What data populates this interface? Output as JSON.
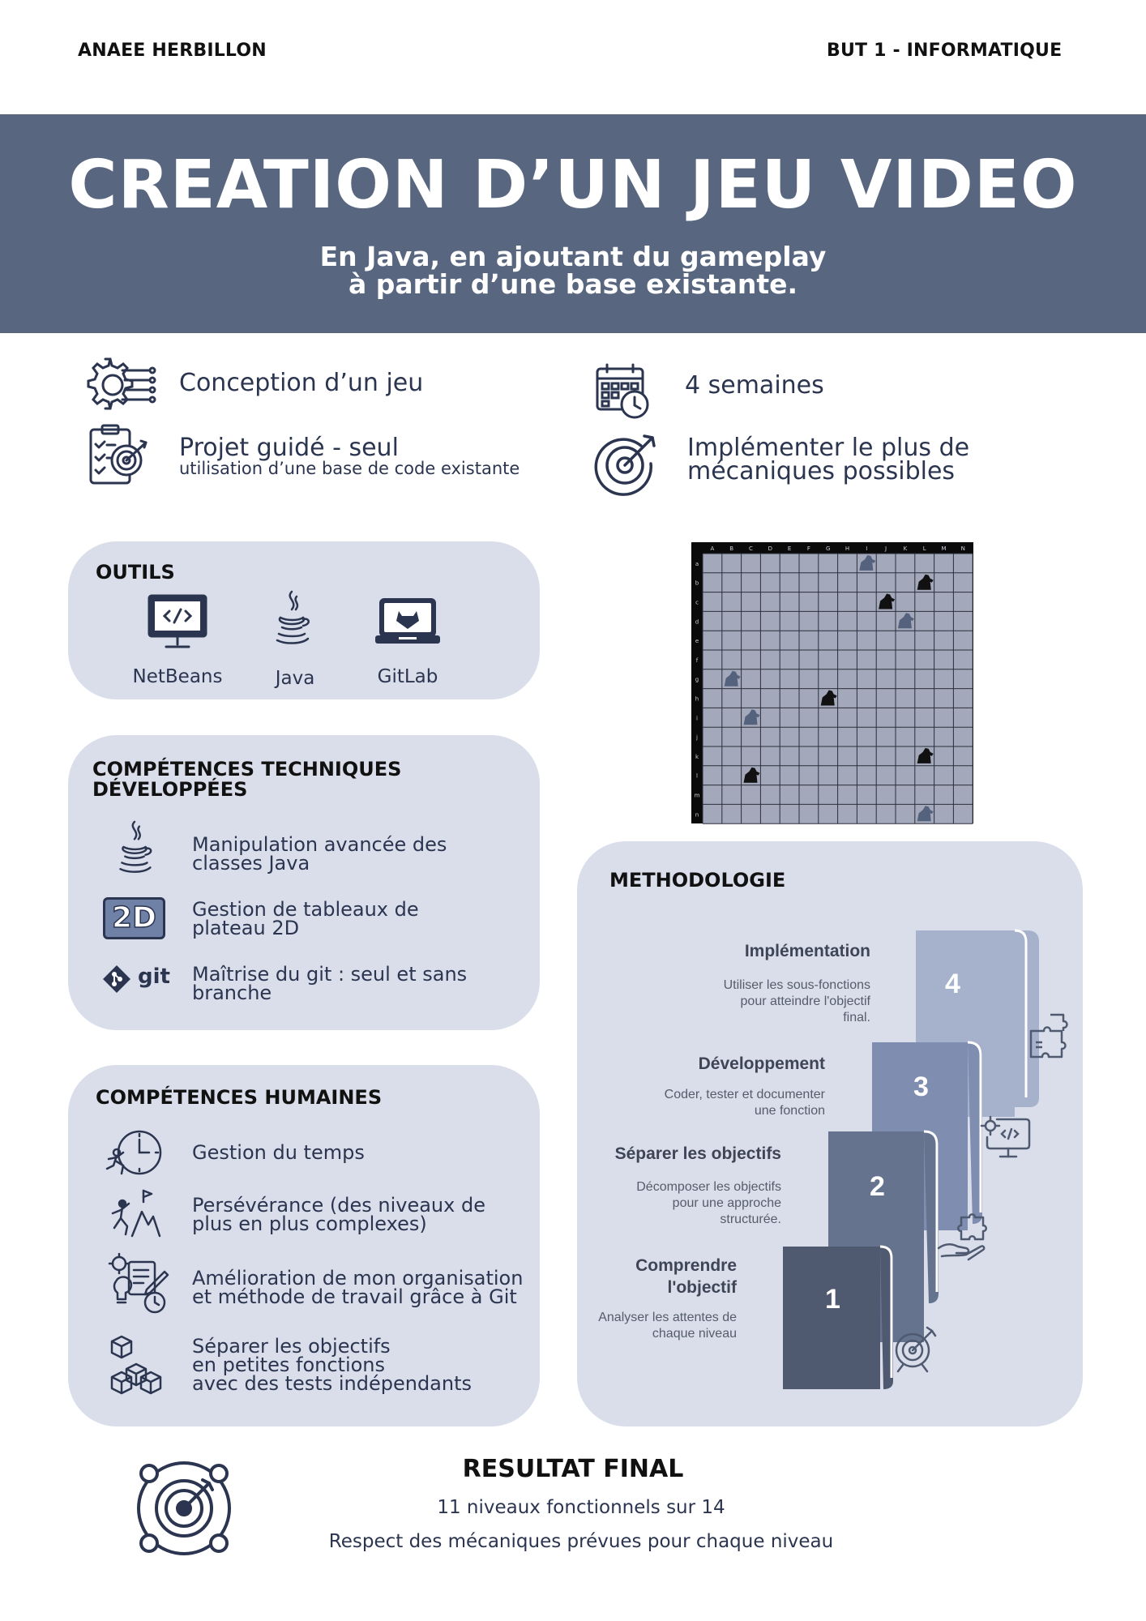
{
  "header": {
    "author": "ANAEE HERBILLON",
    "program": "BUT 1 - INFORMATIQUE"
  },
  "banner": {
    "title": "CREATION D’UN JEU VIDEO",
    "subtitle": "En Java, en ajoutant du gameplay\nà partir d’une base existante."
  },
  "info": {
    "conception": "Conception d’un jeu",
    "project": "Projet guidé  - seul",
    "project_sub": "utilisation d’une base de code existante",
    "duration": "4 semaines",
    "goal": "Implémenter le plus de\nmécaniques possibles"
  },
  "tools": {
    "title": "OUTILS",
    "items": [
      {
        "label": "NetBeans",
        "icon": "netbeans-monitor-icon"
      },
      {
        "label": "Java",
        "icon": "java-icon"
      },
      {
        "label": "GitLab",
        "icon": "gitlab-laptop-icon"
      }
    ]
  },
  "game_grid": {
    "columns": [
      "A",
      "B",
      "C",
      "D",
      "E",
      "F",
      "G",
      "H",
      "I",
      "J",
      "K",
      "L",
      "M",
      "N"
    ],
    "rows": [
      "a",
      "b",
      "c",
      "d",
      "e",
      "f",
      "g",
      "h",
      "i",
      "j",
      "k",
      "l",
      "m",
      "n"
    ]
  },
  "tech_skills": {
    "title": "COMPÉTENCES TECHNIQUES\nDÉVELOPPÉES",
    "items": [
      {
        "label": "Manipulation avancée des\nclasses Java",
        "icon": "java-icon"
      },
      {
        "label": "Gestion de tableaux de\nplateau 2D",
        "icon": "2d-icon",
        "badge": "2D"
      },
      {
        "label": "Maîtrise du git : seul et sans\nbranche",
        "icon": "git-icon",
        "badge": "git"
      }
    ]
  },
  "human_skills": {
    "title": "COMPÉTENCES HUMAINES",
    "items": [
      {
        "label": "Gestion du temps",
        "icon": "clock-runner-icon"
      },
      {
        "label": "Persévérance (des niveaux de\nplus en plus complexes)",
        "icon": "climber-icon"
      },
      {
        "label": "Amélioration de mon organisation\net méthode de travail grâce à Git",
        "icon": "organisation-icon"
      },
      {
        "label": "Séparer les objectifs\nen petites fonctions\navec des tests indépendants",
        "icon": "cubes-icon"
      }
    ]
  },
  "methodology": {
    "title": "METHODOLOGIE",
    "steps": [
      {
        "number": "1",
        "title": "Comprendre\nl'objectif",
        "desc": "Analyser les attentes de\nchaque niveau",
        "color": "#4f5a70",
        "icon": "target-icon"
      },
      {
        "number": "2",
        "title": "Séparer les objectifs",
        "desc": "Décomposer les objectifs\npour une approche\nstructurée.",
        "color": "#66738f",
        "icon": "puzzle-hand-icon"
      },
      {
        "number": "3",
        "title": "Développement",
        "desc": "Coder, tester et documenter\nune fonction",
        "color": "#7f8db0",
        "icon": "code-monitor-icon"
      },
      {
        "number": "4",
        "title": "Implémentation",
        "desc": "Utiliser les sous-fonctions\npour atteindre l'objectif\nfinal.",
        "color": "#a6b1cc",
        "icon": "puzzle-icon"
      }
    ]
  },
  "result": {
    "title": "RESULTAT FINAL",
    "line1": "11 niveaux fonctionnels sur 14",
    "line2": "Respect des mécaniques prévues pour chaque niveau"
  },
  "colors": {
    "banner": "#58667f",
    "card": "#d9deea",
    "ink": "#2b3550"
  }
}
